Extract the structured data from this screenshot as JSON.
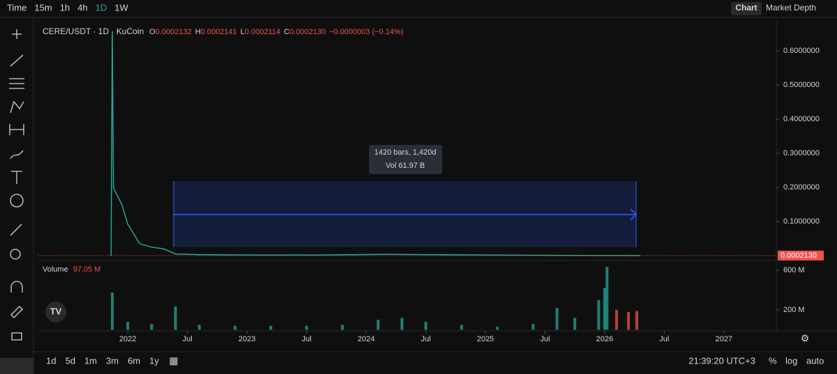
{
  "toolbar": {
    "items": [
      "Time",
      "15m",
      "1h",
      "4h",
      "1D",
      "1W"
    ],
    "right": [
      "Chart",
      "Market Depth"
    ]
  },
  "legend": {
    "symbol": "CERE/USDT · 1D · KuCoin",
    "ohlc": [
      [
        "O",
        "0.0002132"
      ],
      [
        "H",
        "0.0002141"
      ],
      [
        "L",
        "0.0002114"
      ],
      [
        "C",
        "0.0002130"
      ]
    ],
    "change": "−0.0000003 (−0.14%)",
    "volume_label": "Volume",
    "volume_value": "97.05 M"
  },
  "bottom_bar": {
    "ranges": [
      "1d",
      "5d",
      "1m",
      "3m",
      "6m",
      "1y"
    ],
    "clock": "21:39:20 UTC+3",
    "options": [
      "%",
      "log",
      "auto"
    ]
  },
  "chart_data": [
    {
      "type": "line",
      "color": "#26a69a",
      "x": [
        2021.86,
        2021.87,
        2021.88,
        2021.95,
        2022.0,
        2022.1,
        2022.2,
        2022.3,
        2022.4,
        2022.6,
        2023.0,
        2023.6,
        2024.2,
        2024.5,
        2025.0,
        2025.5,
        2026.0,
        2026.3
      ],
      "values": [
        0.0002,
        0.657,
        0.198,
        0.15,
        0.092,
        0.035,
        0.025,
        0.02,
        0.005,
        0.003,
        0.002,
        0.002,
        0.004,
        0.003,
        0.002,
        0.001,
        0.0005,
        0.000213
      ],
      "xlim": [
        2021.25,
        2027.44
      ],
      "ylim": [
        -0.006,
        0.688
      ],
      "yticks": [
        {
          "value": 0.1,
          "label": "0.1000000"
        },
        {
          "value": 0.2,
          "label": "0.2000000"
        },
        {
          "value": 0.3,
          "label": "0.3000000"
        },
        {
          "value": 0.4,
          "label": "0.4000000"
        },
        {
          "value": 0.5,
          "label": "0.5000000"
        },
        {
          "value": 0.6,
          "label": "0.6000000"
        }
      ],
      "last_price": {
        "value": 0.000213,
        "label": "0.0002130"
      },
      "annotations": [
        "1420 bars, 1,420d",
        "Vol 61.97 B"
      ]
    },
    {
      "type": "bar",
      "color": "#26a69a",
      "x": [
        2021.87,
        2022.0,
        2022.2,
        2022.4,
        2022.6,
        2022.9,
        2023.2,
        2023.5,
        2023.8,
        2024.1,
        2024.3,
        2024.5,
        2024.8,
        2025.1,
        2025.4,
        2025.6,
        2025.75,
        2025.95,
        2026.0,
        2026.02,
        2026.1,
        2026.2,
        2026.27
      ],
      "values": [
        375,
        80,
        60,
        235,
        50,
        40,
        40,
        40,
        50,
        100,
        120,
        80,
        50,
        30,
        60,
        220,
        120,
        300,
        420,
        635,
        200,
        180,
        190
      ],
      "xlim": [
        2021.25,
        2027.44
      ],
      "ylim": [
        0,
        670
      ],
      "yticks": [
        {
          "value": 200,
          "label": "200 M"
        },
        {
          "value": 600,
          "label": "600 M"
        }
      ],
      "xticks": [
        2022,
        {
          "value": 2022.5,
          "label": "Jul"
        },
        2023,
        {
          "value": 2023.5,
          "label": "Jul"
        },
        2024,
        {
          "value": 2024.5,
          "label": "Jul"
        },
        2025,
        {
          "value": 2025.5,
          "label": "Jul"
        },
        2026,
        {
          "value": 2026.5,
          "label": "Jul"
        },
        2027
      ]
    }
  ]
}
